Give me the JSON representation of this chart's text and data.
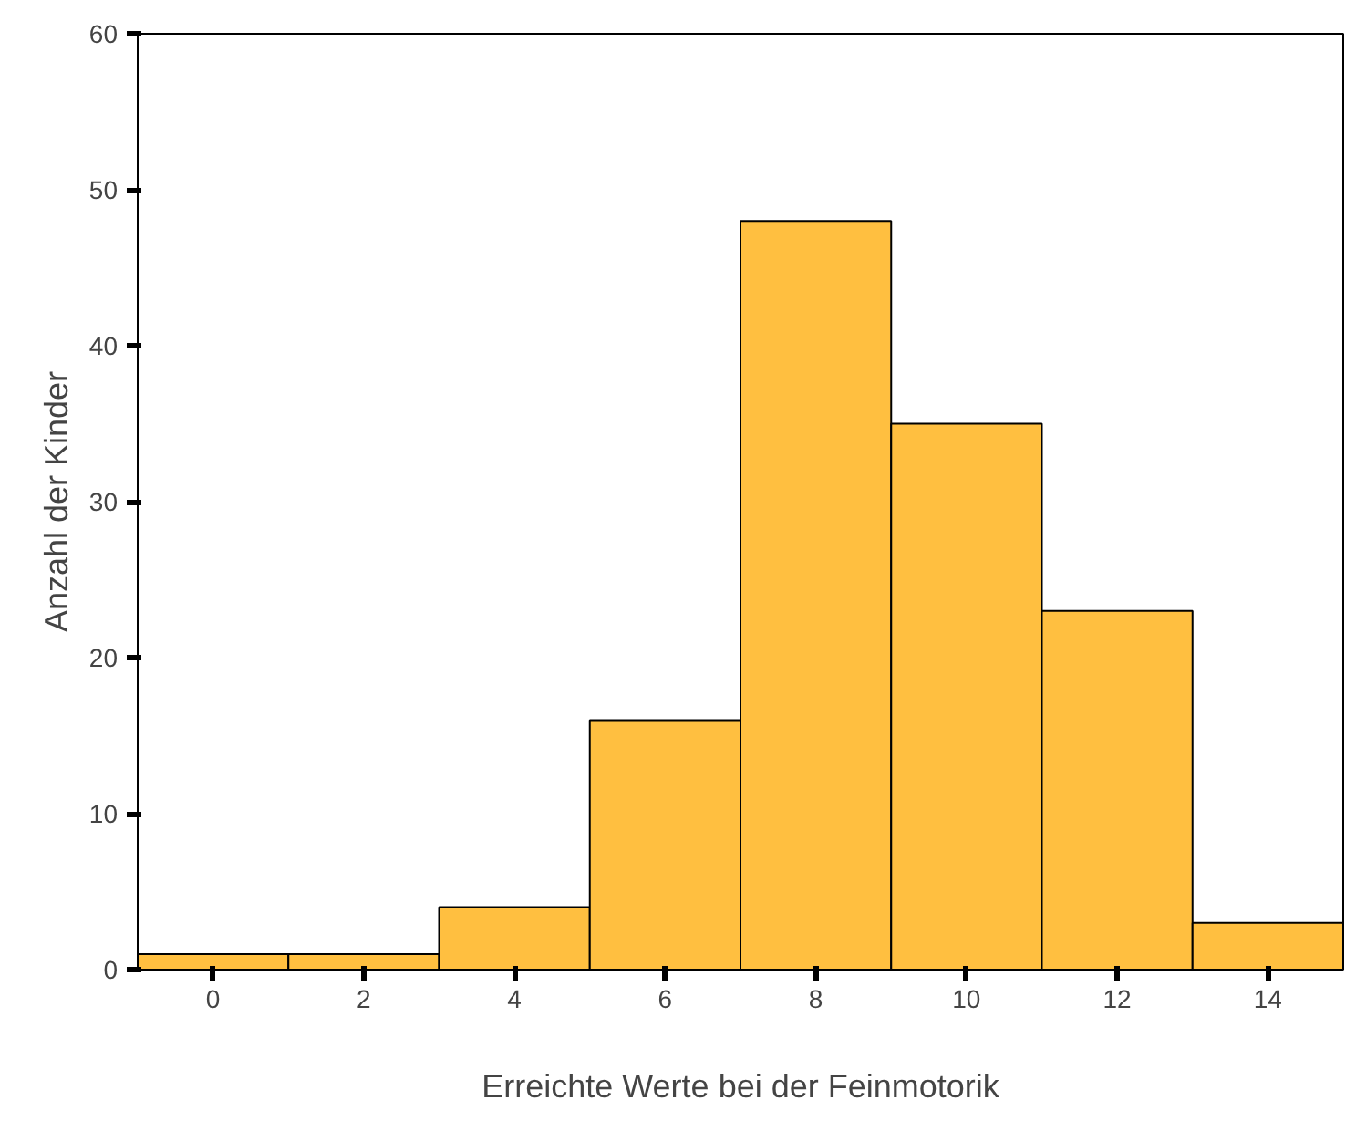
{
  "chart_data": {
    "type": "histogram",
    "xlabel": "Erreichte Werte bei der Feinmotorik",
    "ylabel": "Anzahl der Kinder",
    "bins": [
      -1,
      1,
      3,
      5,
      7,
      9,
      11,
      13,
      15
    ],
    "values": [
      1,
      1,
      4,
      16,
      48,
      35,
      23,
      3
    ],
    "color": "#ffbf40",
    "xlim": [
      -1,
      15
    ],
    "xticks": [
      0,
      2,
      4,
      6,
      8,
      10,
      12,
      14
    ],
    "ylim": [
      0,
      60
    ],
    "yticks": [
      0,
      10,
      20,
      30,
      40,
      50,
      60
    ],
    "grid": false
  }
}
